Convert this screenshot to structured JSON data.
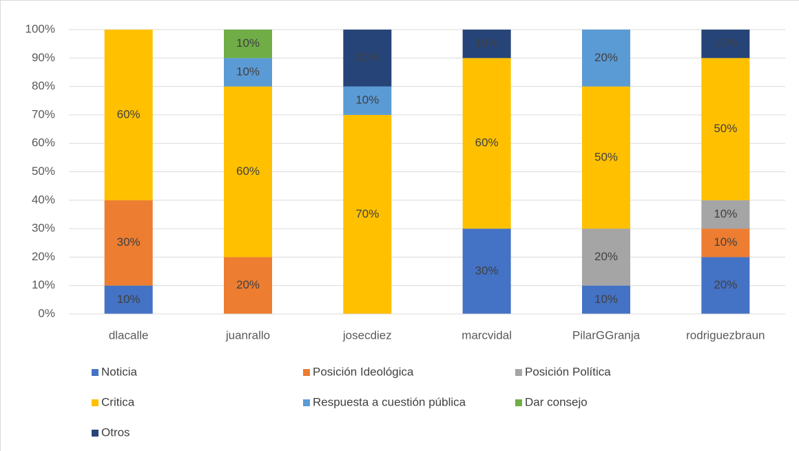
{
  "chart_data": {
    "type": "stacked_bar",
    "categories": [
      "dlacalle",
      "juanrallo",
      "josecdiez",
      "marcvidal",
      "PilarGGranja",
      "rodriguezbraun"
    ],
    "series": [
      {
        "name": "Noticia",
        "color": "#4472c4",
        "values": [
          10,
          null,
          null,
          30,
          10,
          20
        ],
        "value_labels": [
          "10%",
          null,
          null,
          "30%",
          "10%",
          "20%"
        ]
      },
      {
        "name": "Posición Ideológica",
        "color": "#ed7d31",
        "values": [
          30,
          20,
          null,
          null,
          null,
          10
        ],
        "value_labels": [
          "30%",
          "20%",
          null,
          null,
          null,
          "10%"
        ]
      },
      {
        "name": "Posición Política",
        "color": "#a5a5a5",
        "values": [
          null,
          null,
          null,
          null,
          20,
          10
        ],
        "value_labels": [
          null,
          null,
          null,
          null,
          "20%",
          "10%"
        ]
      },
      {
        "name": "Critica",
        "color": "#ffc000",
        "values": [
          60,
          60,
          70,
          60,
          50,
          50
        ],
        "value_labels": [
          "60%",
          "60%",
          "70%",
          "60%",
          "50%",
          "50%"
        ]
      },
      {
        "name": "Respuesta a cuestión pública",
        "color": "#5b9bd5",
        "values": [
          null,
          10,
          10,
          null,
          20,
          null
        ],
        "value_labels": [
          null,
          "10%",
          "10%",
          null,
          "20%",
          null
        ]
      },
      {
        "name": "Dar consejo",
        "color": "#70ad47",
        "values": [
          null,
          10,
          null,
          null,
          null,
          null
        ],
        "value_labels": [
          null,
          "10%",
          null,
          null,
          null,
          null
        ]
      },
      {
        "name": "Otros",
        "color": "#264478",
        "values": [
          null,
          null,
          20,
          10,
          null,
          10
        ],
        "value_labels": [
          null,
          null,
          "20%",
          "10%",
          null,
          "10%"
        ]
      }
    ],
    "ylim": [
      0,
      100
    ],
    "yticks": [
      {
        "value": 0,
        "label": "0%"
      },
      {
        "value": 10,
        "label": "10%"
      },
      {
        "value": 20,
        "label": "20%"
      },
      {
        "value": 30,
        "label": "30%"
      },
      {
        "value": 40,
        "label": "40%"
      },
      {
        "value": 50,
        "label": "50%"
      },
      {
        "value": 60,
        "label": "60%"
      },
      {
        "value": 70,
        "label": "70%"
      },
      {
        "value": 80,
        "label": "80%"
      },
      {
        "value": 90,
        "label": "90%"
      },
      {
        "value": 100,
        "label": "100%"
      }
    ],
    "grid": true,
    "legend": "bottom"
  }
}
